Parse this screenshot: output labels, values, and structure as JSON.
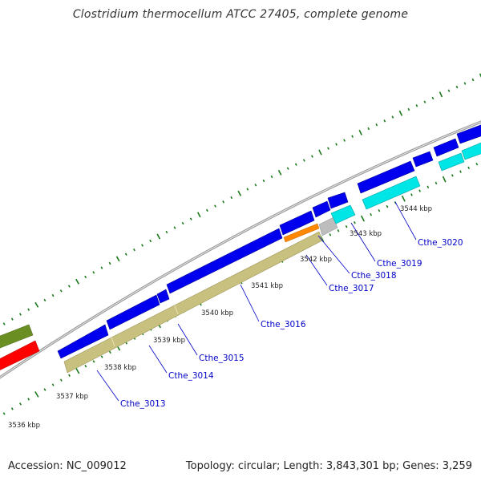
{
  "title": "Clostridium thermocellum ATCC 27405, complete genome",
  "footer": {
    "accession": "Accession: NC_009012",
    "topology": "Topology: circular; Length: 3,843,301 bp; Genes: 3,259"
  },
  "ruler_ticks": [
    "3536 kbp",
    "3537 kbp",
    "3538 kbp",
    "3539 kbp",
    "3540 kbp",
    "3541 kbp",
    "3542 kbp",
    "3543 kbp",
    "3544 kbp"
  ],
  "gene_labels": [
    "Cthe_3013",
    "Cthe_3014",
    "Cthe_3015",
    "Cthe_3016",
    "Cthe_3017",
    "Cthe_3018",
    "Cthe_3019",
    "Cthe_3020"
  ],
  "colors": {
    "forward_cds": "#0000ee",
    "reverse_cds": "#00e5e5",
    "feature_olive": "#c8c07e",
    "feature_orange": "#ff8800",
    "feature_grey": "#bdbdbd",
    "green_block": "#6b8e23",
    "red_block": "#ff0000",
    "backbone": "#999999",
    "ticks": "#1a7a1a",
    "label": "#0000c8"
  }
}
